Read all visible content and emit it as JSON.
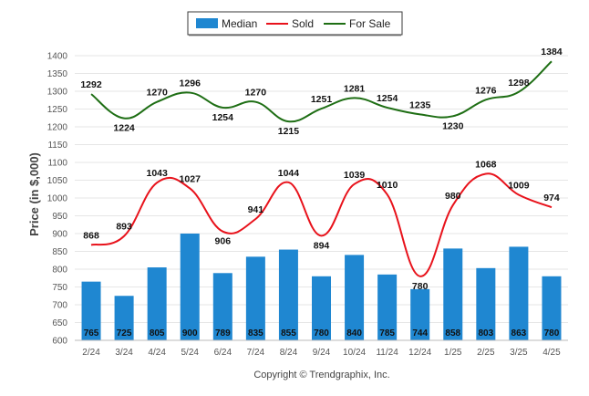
{
  "chart_data": {
    "type": "bar",
    "categories": [
      "2/24",
      "3/24",
      "4/24",
      "5/24",
      "6/24",
      "7/24",
      "8/24",
      "9/24",
      "10/24",
      "11/24",
      "12/24",
      "1/25",
      "2/25",
      "3/25",
      "4/25"
    ],
    "ylabel": "Price (in $,000)",
    "ylim": [
      600,
      1400
    ],
    "yticks": [
      600,
      650,
      700,
      750,
      800,
      850,
      900,
      950,
      1000,
      1050,
      1100,
      1150,
      1200,
      1250,
      1300,
      1350,
      1400
    ],
    "grid": true,
    "legend_position": "top-center",
    "series": [
      {
        "name": "Median",
        "kind": "bar",
        "color": "#1f87d1",
        "values": [
          765,
          725,
          805,
          900,
          789,
          835,
          855,
          780,
          840,
          785,
          744,
          858,
          803,
          863,
          780
        ]
      },
      {
        "name": "Sold",
        "kind": "line",
        "color": "#e8121b",
        "values": [
          868,
          893,
          1043,
          1027,
          906,
          941,
          1044,
          894,
          1039,
          1010,
          780,
          980,
          1068,
          1009,
          974
        ]
      },
      {
        "name": "For Sale",
        "kind": "line",
        "color": "#1e6e14",
        "values": [
          1292,
          1224,
          1270,
          1296,
          1254,
          1270,
          1215,
          1251,
          1281,
          1254,
          1235,
          1230,
          1276,
          1298,
          1384
        ]
      }
    ]
  },
  "copyright": "Copyright © Trendgraphix, Inc."
}
